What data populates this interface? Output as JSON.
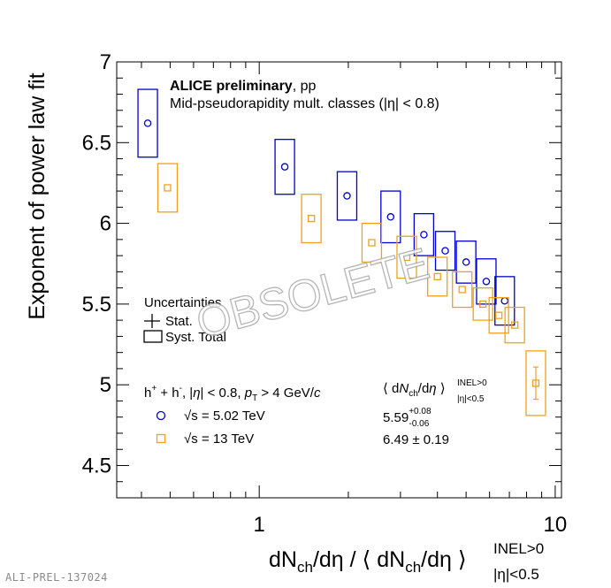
{
  "chart_data": {
    "type": "scatter",
    "x_scale": "log",
    "xlim": [
      0.33,
      10.5
    ],
    "ylim": [
      4.3,
      7.0
    ],
    "y_ticks": [
      4.5,
      5,
      5.5,
      6,
      6.5,
      7
    ],
    "y_tick_labels": [
      "4.5",
      "5",
      "5.5",
      "6",
      "6.5",
      "7"
    ],
    "x_ticks": [
      1,
      10
    ],
    "x_tick_labels": [
      "1",
      "10"
    ],
    "ylabel": "Exponent of power law fit",
    "xlabel": {
      "main": "dN",
      "sub1": "ch",
      "mid": "/dη / ⟨ dN",
      "sub2": "ch",
      "end": "/dη ⟩",
      "sup": "INEL>0",
      "sub3": "|η|<0.5"
    },
    "title": {
      "bold": "ALICE preliminary",
      "rest": ", pp"
    },
    "subtitle": "Mid-pseudorapidity mult. classes (|η| < 0.8)",
    "uncertainties": {
      "heading": "Uncertainties",
      "stat": "Stat.",
      "syst": "Syst. Total"
    },
    "selection_label": "h⁺ + h⁻, |η| < 0.8, p_T > 4 GeV/c",
    "mean_header": "⟨ dN_ch/dη ⟩ INEL>0 |η|<0.5",
    "series": [
      {
        "name": "√s = 5.02 TeV",
        "color": "#0000cc",
        "marker": "circle",
        "mean_text": "5.59 +0.08 -0.06",
        "points": [
          {
            "x": 0.42,
            "y": 6.62,
            "syst": 0.21
          },
          {
            "x": 1.22,
            "y": 6.35,
            "syst": 0.17
          },
          {
            "x": 1.98,
            "y": 6.17,
            "syst": 0.15
          },
          {
            "x": 2.78,
            "y": 6.04,
            "syst": 0.16
          },
          {
            "x": 3.6,
            "y": 5.93,
            "syst": 0.13
          },
          {
            "x": 4.25,
            "y": 5.83,
            "syst": 0.12
          },
          {
            "x": 5.0,
            "y": 5.76,
            "syst": 0.13
          },
          {
            "x": 5.85,
            "y": 5.64,
            "syst": 0.14
          },
          {
            "x": 6.75,
            "y": 5.52,
            "syst": 0.15
          }
        ]
      },
      {
        "name": "√s = 13 TeV",
        "color": "#f0a020",
        "marker": "square",
        "mean_text": "6.49 ± 0.19",
        "points": [
          {
            "x": 0.49,
            "y": 6.22,
            "syst": 0.15
          },
          {
            "x": 1.5,
            "y": 6.03,
            "syst": 0.15
          },
          {
            "x": 2.4,
            "y": 5.88,
            "syst": 0.12
          },
          {
            "x": 3.15,
            "y": 5.79,
            "syst": 0.13
          },
          {
            "x": 4.0,
            "y": 5.67,
            "syst": 0.12
          },
          {
            "x": 4.85,
            "y": 5.59,
            "syst": 0.11
          },
          {
            "x": 5.7,
            "y": 5.5,
            "syst": 0.1
          },
          {
            "x": 6.45,
            "y": 5.43,
            "syst": 0.11
          },
          {
            "x": 7.3,
            "y": 5.37,
            "syst": 0.11
          },
          {
            "x": 8.6,
            "y": 5.01,
            "syst": 0.2,
            "stat": 0.1
          }
        ]
      }
    ],
    "watermark": "OBSOLETE",
    "footer_id": "ALI-PREL-137024"
  }
}
